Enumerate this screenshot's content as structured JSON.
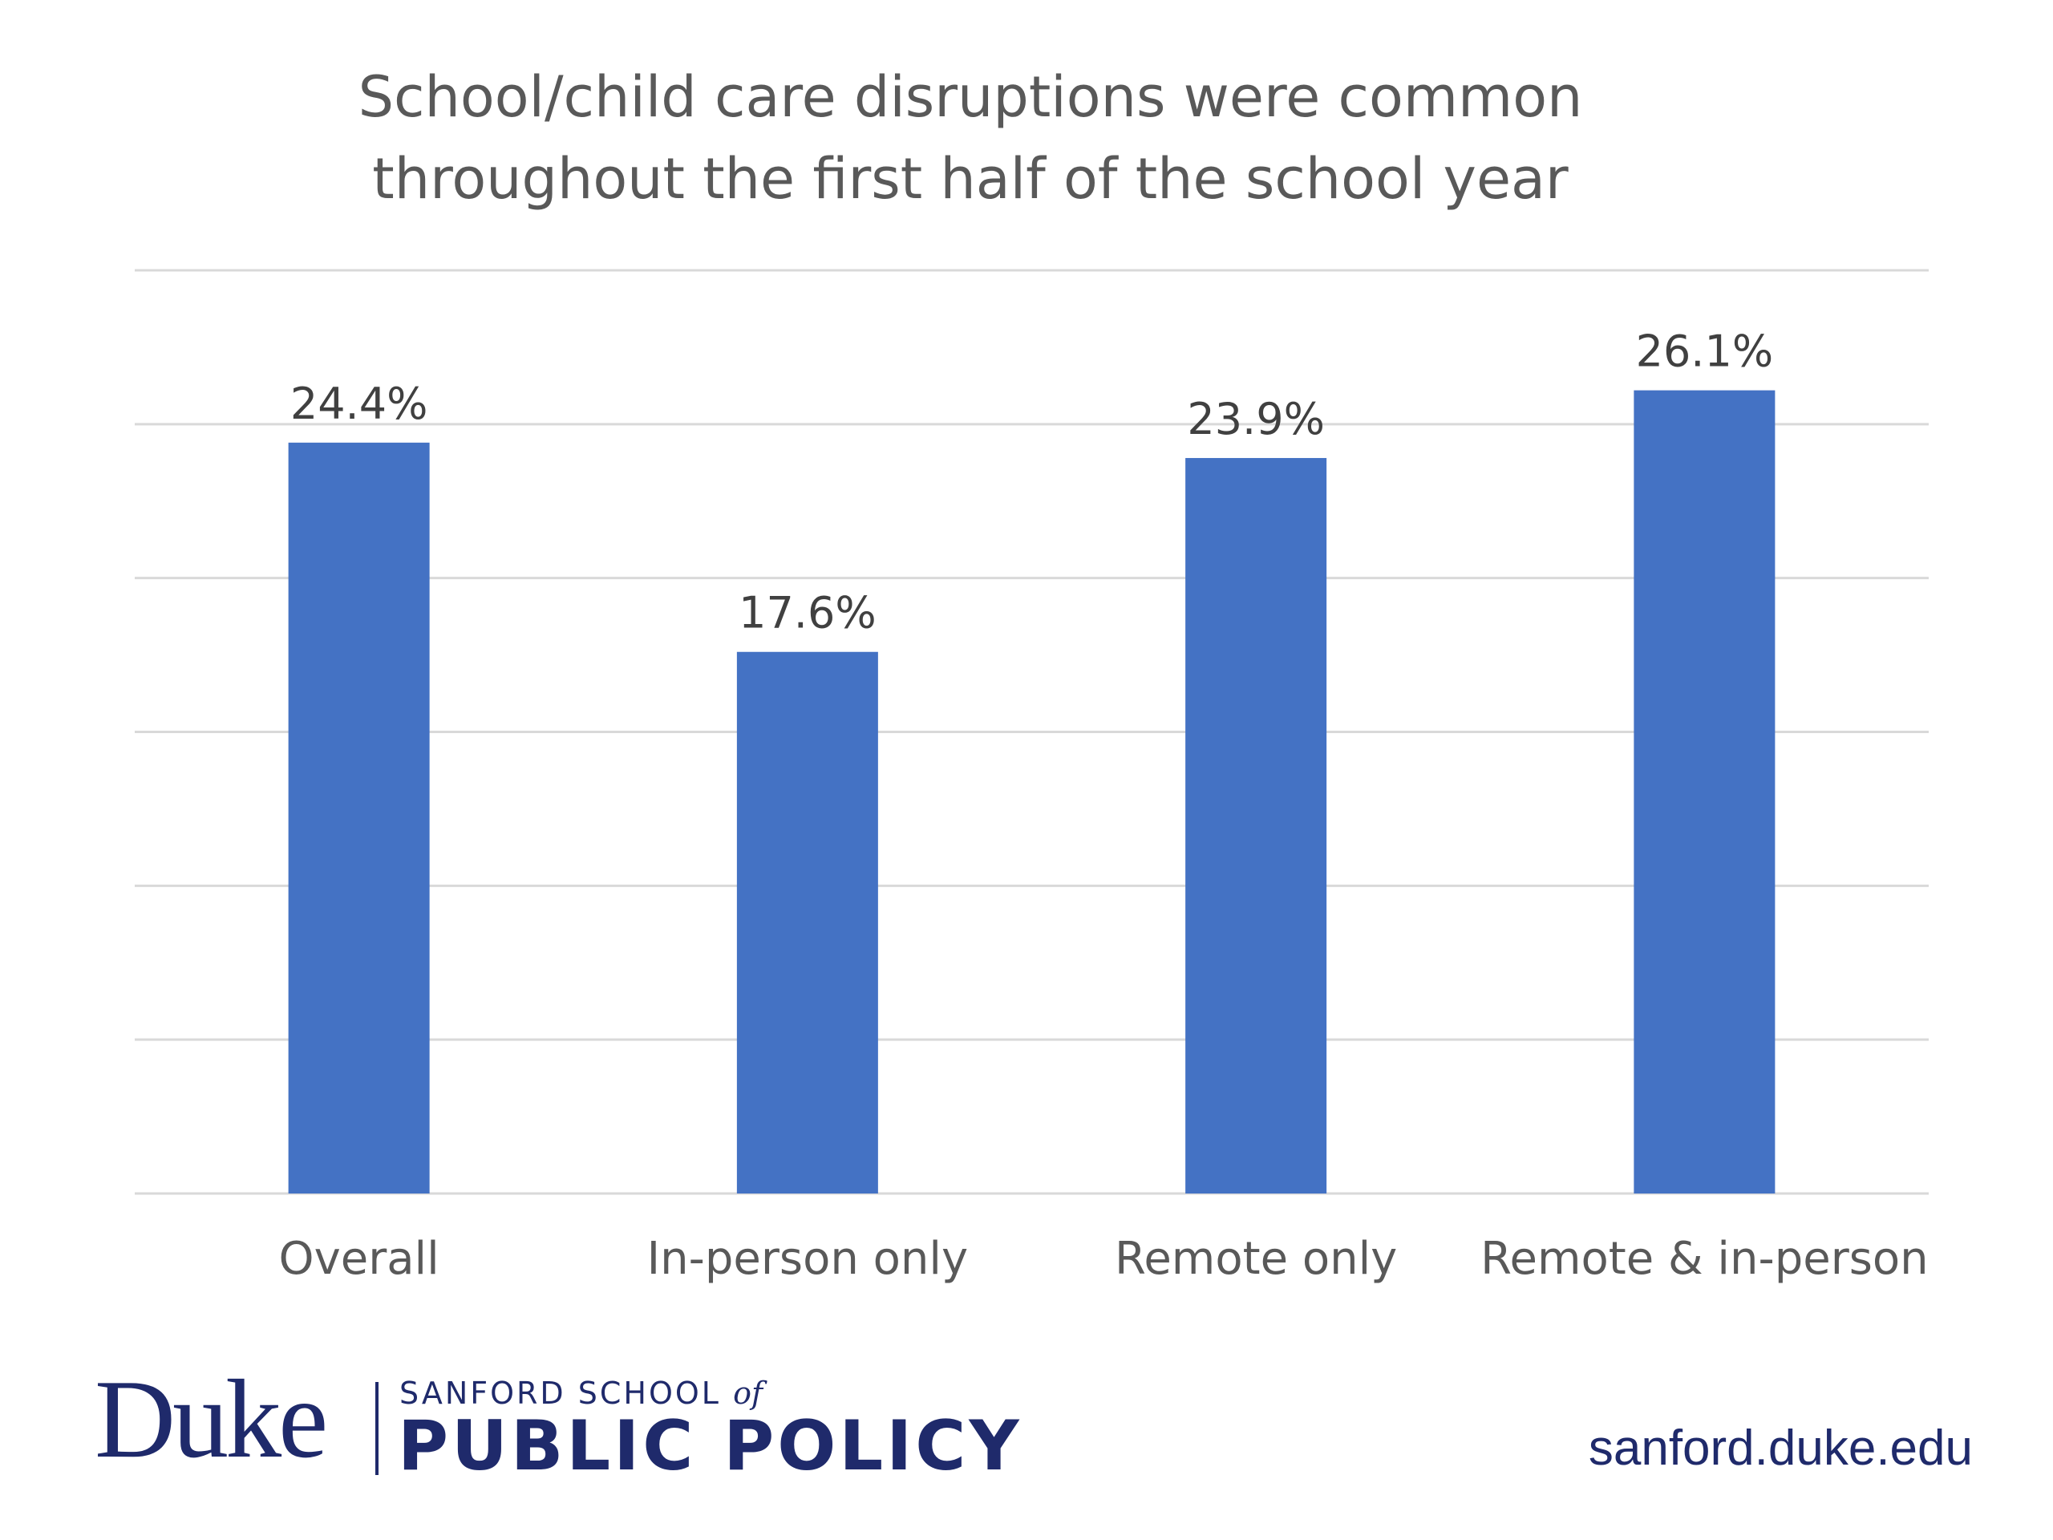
{
  "chart_data": {
    "type": "bar",
    "title_lines": [
      "School/child care disruptions were common",
      "throughout the first half of the school year"
    ],
    "categories": [
      "Overall",
      "In-person only",
      "Remote only",
      "Remote & in-person"
    ],
    "values": [
      24.4,
      17.6,
      23.9,
      26.1
    ],
    "data_labels": [
      "24.4%",
      "17.6%",
      "23.9%",
      "26.1%"
    ],
    "ylim": [
      0,
      30
    ],
    "y_gridline_step": 5,
    "y_tick_labels_visible": false,
    "grid": true,
    "legend": "none",
    "xlabel": "",
    "ylabel": "",
    "colors": {
      "bar": "#4472c4",
      "title": "#595959",
      "data_label": "#404040",
      "tick_label": "#595959",
      "gridline": "#d9d9d9"
    }
  },
  "branding": {
    "logo_word": "Duke",
    "school_line": "SANFORD SCHOOL",
    "school_of": "of",
    "policy_line": "PUBLIC POLICY",
    "website": "sanford.duke.edu",
    "brand_color": "#1f2a6b"
  }
}
